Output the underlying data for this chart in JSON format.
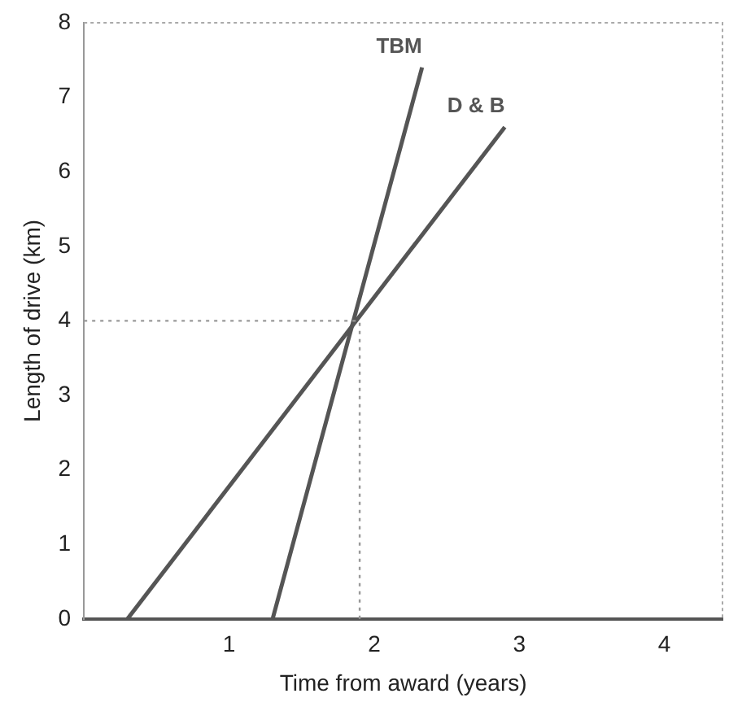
{
  "chart_data": {
    "type": "line",
    "xlabel": "Time from award (years)",
    "ylabel": "Length of drive (km)",
    "series": [
      {
        "name": "TBM",
        "color": "#555555",
        "x": [
          1.3,
          2.33
        ],
        "values": [
          0,
          7.4
        ]
      },
      {
        "name": "D & B",
        "color": "#555555",
        "x": [
          0.3,
          2.9
        ],
        "values": [
          0,
          6.6
        ]
      }
    ],
    "xlim": [
      0,
      4.4
    ],
    "xticks": [
      1,
      2,
      3,
      4
    ],
    "ylim": [
      0,
      8
    ],
    "yticks": [
      0,
      1,
      2,
      3,
      4,
      5,
      6,
      7,
      8
    ],
    "ref_lines": [
      {
        "axis": "y",
        "value": 4,
        "color": "#999999",
        "line_style": "dotted"
      },
      {
        "axis": "x",
        "value": 1.9,
        "color": "#999999",
        "line_style": "dotted"
      }
    ],
    "grid": false,
    "legend": false,
    "marker": "none",
    "line_style": "solid"
  }
}
